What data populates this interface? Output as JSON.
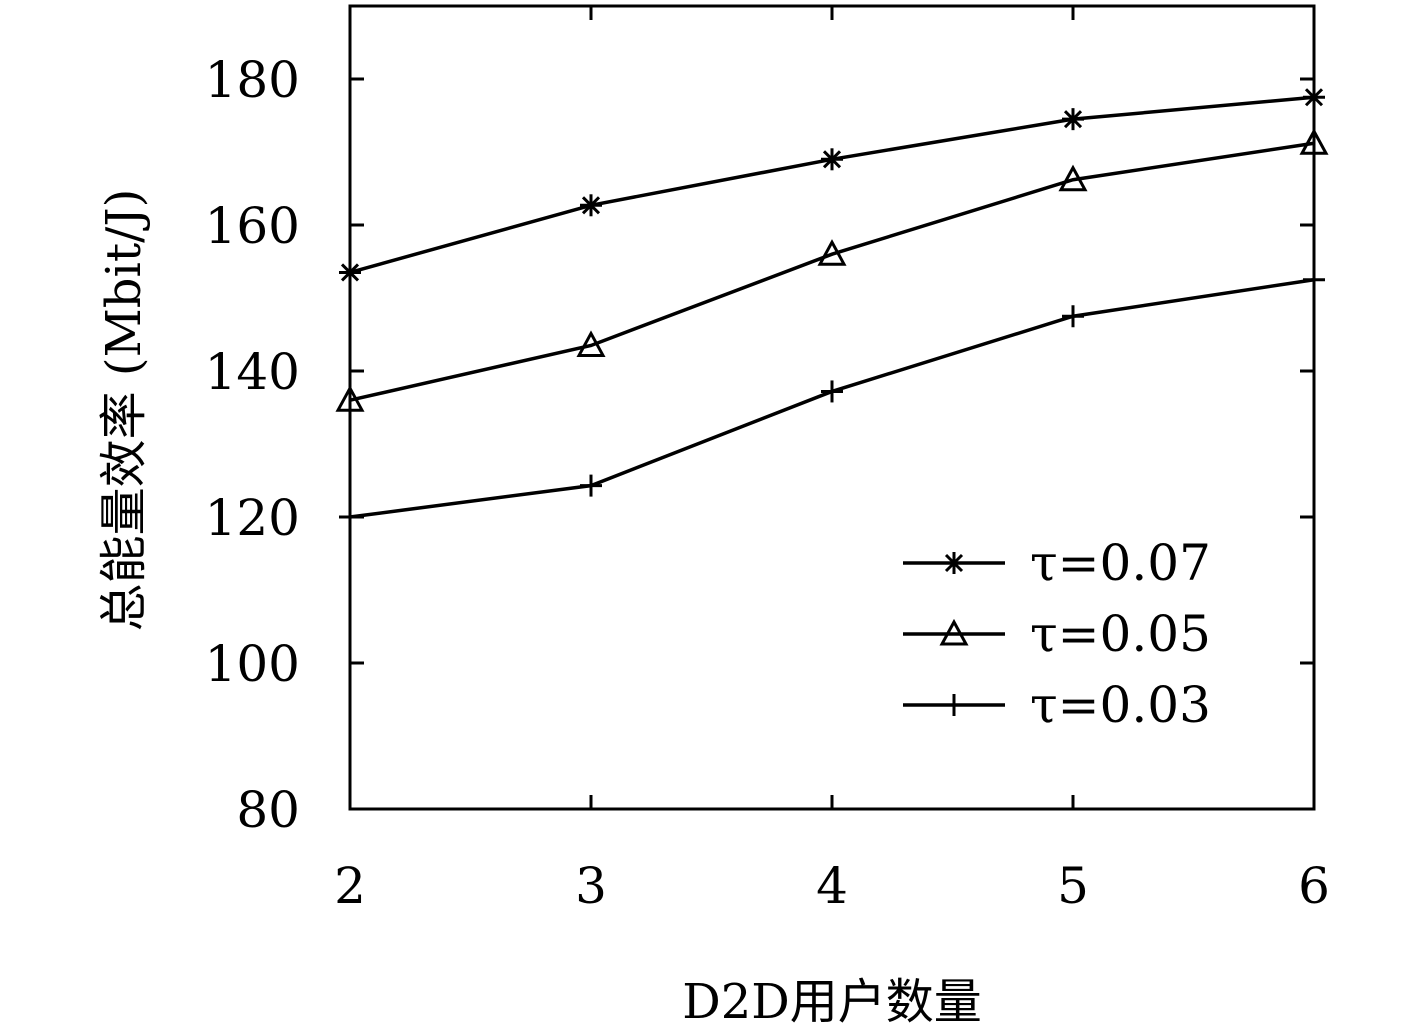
{
  "chart_data": {
    "type": "line",
    "title": "",
    "xlabel": "D2D用户数量",
    "ylabel": "总能量效率 (Mbit/J)",
    "x": [
      2,
      3,
      4,
      5,
      6
    ],
    "xlim": [
      2,
      6
    ],
    "ylim": [
      80,
      190
    ],
    "xticks": [
      2,
      3,
      4,
      5,
      6
    ],
    "yticks": [
      80,
      100,
      120,
      140,
      160,
      180
    ],
    "grid": false,
    "legend_position": "bottom-right",
    "series": [
      {
        "name": "τ=0.07",
        "marker": "asterisk",
        "values": [
          153.5,
          162.7,
          169,
          174.5,
          177.5
        ]
      },
      {
        "name": "τ=0.05",
        "marker": "triangle",
        "values": [
          136,
          143.5,
          156,
          166.2,
          171.2
        ]
      },
      {
        "name": "τ=0.03",
        "marker": "plus",
        "values": [
          120,
          124.3,
          137.2,
          147.5,
          152.5
        ]
      }
    ],
    "colors": {
      "line": "#000000",
      "background": "#ffffff"
    }
  }
}
